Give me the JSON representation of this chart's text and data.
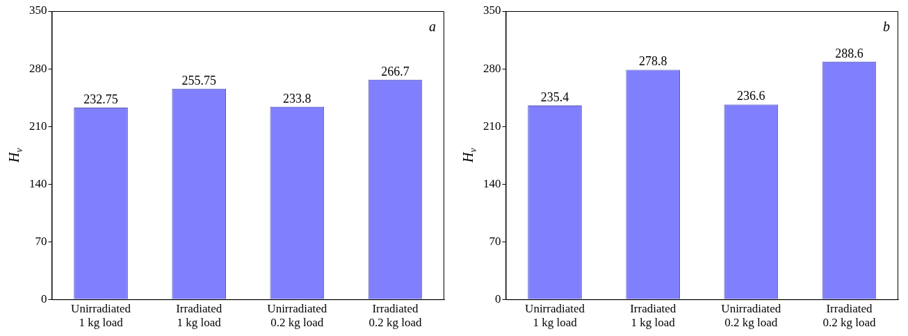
{
  "chart_data": [
    {
      "type": "bar",
      "categories": [
        "Unirradiated\n1 kg load",
        "Irradiated\n1 kg load",
        "Unirradiated\n0.2 kg load",
        "Irradiated\n0.2 kg load"
      ],
      "values": [
        232.75,
        255.75,
        233.8,
        266.7
      ],
      "color": "#8080ff",
      "ylabel": "H$_{v}$",
      "ylim": [
        0,
        350
      ],
      "yticks": [
        0,
        70,
        140,
        210,
        280,
        350
      ],
      "data_labels": true,
      "grid": false,
      "legend": false,
      "annotations": [
        "a"
      ]
    },
    {
      "type": "bar",
      "categories": [
        "Unirradiated\n1 kg load",
        "Irradiated\n1 kg load",
        "Unirradiated\n0.2 kg load",
        "Irradiated\n0.2 kg load"
      ],
      "values": [
        235.4,
        278.8,
        236.6,
        288.6
      ],
      "color": "#8080ff",
      "ylabel": "H$_{v}$",
      "ylim": [
        0,
        350
      ],
      "yticks": [
        0,
        70,
        140,
        210,
        280,
        350
      ],
      "data_labels": true,
      "grid": false,
      "legend": false,
      "annotations": [
        "b"
      ]
    }
  ]
}
